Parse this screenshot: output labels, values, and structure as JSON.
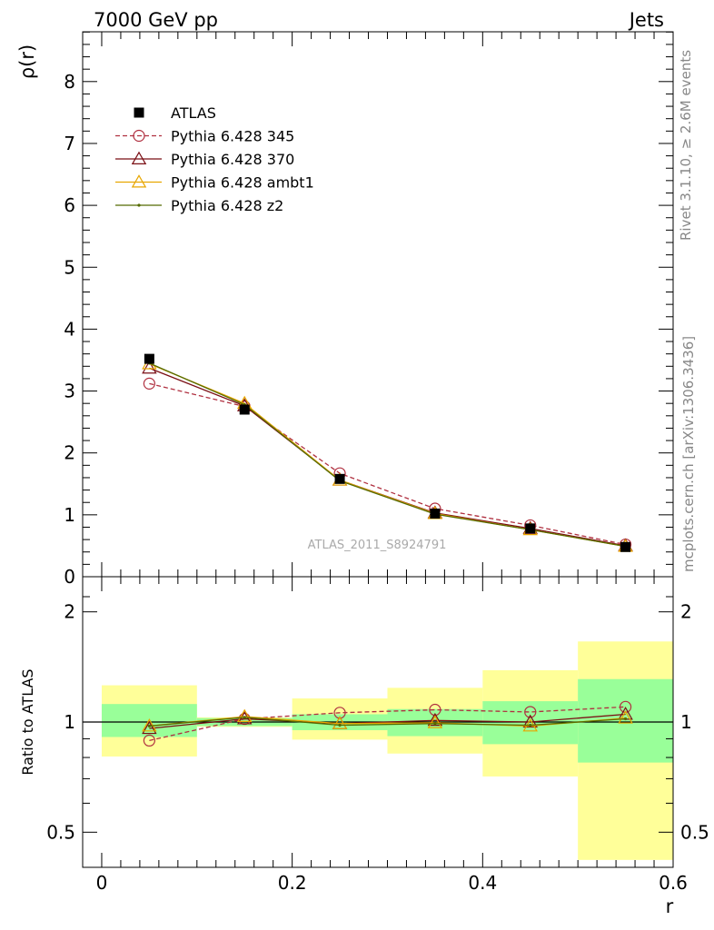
{
  "header": {
    "left": "7000 GeV pp",
    "right": "Jets"
  },
  "side_text": {
    "top": "Rivet 3.1.10, ≥ 2.6M events",
    "bottom": "mcplots.cern.ch [arXiv:1306.3436]"
  },
  "chart_data": [
    {
      "type": "line",
      "ylabel": "ρ(r)",
      "watermark": "ATLAS_2011_S8924791",
      "ylim": [
        0,
        8.8
      ],
      "xlim": [
        -0.02,
        0.6
      ],
      "yticks": [
        "0",
        "1",
        "2",
        "3",
        "4",
        "5",
        "6",
        "7",
        "8"
      ],
      "x": [
        0.05,
        0.15,
        0.25,
        0.35,
        0.45,
        0.55
      ],
      "data": {
        "name": "ATLAS",
        "values": [
          3.52,
          2.7,
          1.58,
          1.02,
          0.78,
          0.48
        ]
      },
      "series": [
        {
          "name": "Pythia 6.428 345",
          "color": "#b03040",
          "marker": "circle",
          "dashed": true,
          "values": [
            3.12,
            2.75,
            1.67,
            1.1,
            0.83,
            0.52
          ]
        },
        {
          "name": "Pythia 6.428 370",
          "color": "#7a0e14",
          "marker": "triangle",
          "dashed": false,
          "values": [
            3.37,
            2.76,
            1.56,
            1.03,
            0.78,
            0.5
          ]
        },
        {
          "name": "Pythia 6.428 ambt1",
          "color": "#e8a600",
          "marker": "triangle",
          "dashed": false,
          "values": [
            3.44,
            2.8,
            1.56,
            1.02,
            0.76,
            0.49
          ]
        },
        {
          "name": "Pythia 6.428 z2",
          "color": "#556b00",
          "marker": "dot",
          "dashed": false,
          "values": [
            3.45,
            2.78,
            1.55,
            1.01,
            0.76,
            0.49
          ]
        }
      ]
    },
    {
      "type": "line",
      "ylabel": "Ratio to ATLAS",
      "xlabel": "r",
      "ylim": [
        0.4,
        2.3
      ],
      "xticks": [
        "0",
        "0.2",
        "0.4",
        "0.6"
      ],
      "yticks": [
        "0.5",
        "1",
        "2"
      ],
      "bins": [
        [
          0.0,
          0.1
        ],
        [
          0.1,
          0.2
        ],
        [
          0.2,
          0.3
        ],
        [
          0.3,
          0.4
        ],
        [
          0.4,
          0.5
        ],
        [
          0.5,
          0.6
        ]
      ],
      "band_green": [
        [
          0.91,
          1.12
        ],
        [
          0.975,
          1.025
        ],
        [
          0.95,
          1.05
        ],
        [
          0.915,
          1.085
        ],
        [
          0.87,
          1.14
        ],
        [
          0.775,
          1.31
        ]
      ],
      "band_yellow": [
        [
          0.805,
          1.26
        ],
        [
          0.97,
          1.03
        ],
        [
          0.895,
          1.16
        ],
        [
          0.82,
          1.24
        ],
        [
          0.71,
          1.385
        ],
        [
          0.42,
          1.66
        ]
      ],
      "series": [
        {
          "name": "Pythia 6.428 345",
          "values": [
            0.89,
            1.02,
            1.06,
            1.08,
            1.065,
            1.1
          ]
        },
        {
          "name": "Pythia 6.428 370",
          "values": [
            0.96,
            1.02,
            0.99,
            1.01,
            1.0,
            1.05
          ]
        },
        {
          "name": "Pythia 6.428 ambt1",
          "values": [
            0.975,
            1.035,
            0.99,
            0.995,
            0.975,
            1.025
          ]
        },
        {
          "name": "Pythia 6.428 z2",
          "values": [
            0.975,
            1.03,
            0.98,
            0.99,
            0.98,
            1.02
          ]
        }
      ]
    }
  ]
}
